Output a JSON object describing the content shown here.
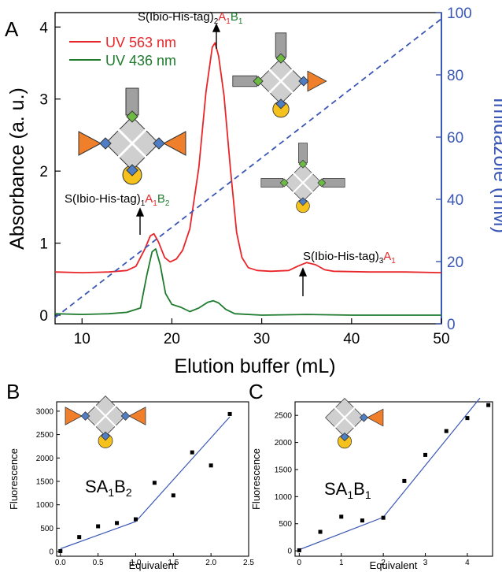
{
  "chart_data": [
    {
      "panel": "A",
      "type": "line",
      "xlabel": "Elution buffer (mL)",
      "ylabel": "Absorbance (a. u.)",
      "y2label": "Imidazole (mM)",
      "xlim": [
        7,
        50
      ],
      "ylim": [
        -0.12,
        4.2
      ],
      "y2lim": [
        0,
        100
      ],
      "xticks": [
        10,
        20,
        30,
        40,
        50
      ],
      "yticks": [
        0,
        1,
        2,
        3,
        4
      ],
      "y2ticks": [
        0,
        20,
        40,
        60,
        80,
        100
      ],
      "series": [
        {
          "name": "UV 563 nm",
          "color": "#e8262a",
          "points": [
            [
              7,
              0.6
            ],
            [
              10,
              0.59
            ],
            [
              13,
              0.6
            ],
            [
              15,
              0.62
            ],
            [
              16,
              0.68
            ],
            [
              17,
              0.92
            ],
            [
              17.6,
              1.1
            ],
            [
              18,
              1.13
            ],
            [
              18.5,
              1.02
            ],
            [
              19.2,
              0.8
            ],
            [
              19.8,
              0.74
            ],
            [
              20.5,
              0.78
            ],
            [
              21.2,
              0.9
            ],
            [
              22,
              1.2
            ],
            [
              23,
              2.05
            ],
            [
              23.8,
              3.1
            ],
            [
              24.5,
              3.72
            ],
            [
              24.8,
              3.78
            ],
            [
              25.2,
              3.6
            ],
            [
              25.8,
              3.05
            ],
            [
              26.5,
              2.05
            ],
            [
              27.2,
              1.15
            ],
            [
              27.8,
              0.8
            ],
            [
              28.5,
              0.66
            ],
            [
              29.5,
              0.62
            ],
            [
              31,
              0.61
            ],
            [
              33,
              0.62
            ],
            [
              34,
              0.68
            ],
            [
              35,
              0.73
            ],
            [
              36,
              0.7
            ],
            [
              37,
              0.63
            ],
            [
              38,
              0.61
            ],
            [
              42,
              0.6
            ],
            [
              46,
              0.6
            ],
            [
              50,
              0.59
            ]
          ]
        },
        {
          "name": "UV 436 nm",
          "color": "#1e7b2e",
          "points": [
            [
              7,
              0.02
            ],
            [
              10,
              0.01
            ],
            [
              13,
              0.02
            ],
            [
              15,
              0.04
            ],
            [
              16.5,
              0.1
            ],
            [
              17.2,
              0.55
            ],
            [
              17.8,
              0.88
            ],
            [
              18.2,
              0.92
            ],
            [
              18.7,
              0.7
            ],
            [
              19.3,
              0.3
            ],
            [
              20,
              0.15
            ],
            [
              21,
              0.11
            ],
            [
              22,
              0.05
            ],
            [
              23,
              0.1
            ],
            [
              24,
              0.18
            ],
            [
              24.6,
              0.2
            ],
            [
              25.2,
              0.17
            ],
            [
              26,
              0.08
            ],
            [
              27,
              0.02
            ],
            [
              30,
              0.0
            ],
            [
              35,
              0.01
            ],
            [
              40,
              0.0
            ],
            [
              45,
              0.0
            ],
            [
              50,
              0.0
            ]
          ]
        },
        {
          "name": "Imidazole",
          "axis": "right",
          "style": "dashed",
          "color": "#3a57b5",
          "points": [
            [
              7,
              2
            ],
            [
              50,
              98
            ]
          ]
        }
      ],
      "annotations": [
        {
          "pre": "S(Ibio-His-tag)",
          "sub1": "2",
          "a": "A",
          "asub": "1",
          "b": "B",
          "bsub": "1"
        },
        {
          "pre": "S(Ibio-His-tag)",
          "sub1": "1",
          "a": "A",
          "asub": "1",
          "b": "B",
          "bsub": "2"
        },
        {
          "pre": "S(Ibio-His-tag)",
          "sub1": "3",
          "a": "A",
          "asub": "1",
          "b": "",
          "bsub": ""
        }
      ]
    },
    {
      "panel": "B",
      "type": "scatter",
      "xlabel": "Equivalent",
      "ylabel": "Fluorescence",
      "xlim": [
        -0.05,
        2.5
      ],
      "ylim": [
        -100,
        3200
      ],
      "xticks": [
        "0.0",
        "0.5",
        "1.0",
        "1.5",
        "2.0",
        "2.5"
      ],
      "yticks": [
        0,
        500,
        1000,
        1500,
        2000,
        2500,
        3000
      ],
      "points": [
        [
          0,
          10
        ],
        [
          0.25,
          310
        ],
        [
          0.5,
          540
        ],
        [
          0.75,
          610
        ],
        [
          1.0,
          690
        ],
        [
          1.25,
          1470
        ],
        [
          1.5,
          1200
        ],
        [
          1.75,
          2120
        ],
        [
          2.0,
          1840
        ],
        [
          2.25,
          2940
        ]
      ],
      "fit": [
        [
          0,
          60
        ],
        [
          1.0,
          640
        ],
        [
          2.25,
          2880
        ]
      ],
      "label": {
        "main": "SA",
        "s1": "1",
        "b": "B",
        "s2": "2"
      }
    },
    {
      "panel": "C",
      "type": "scatter",
      "xlabel": "Equivalent",
      "ylabel": "Fluorescence",
      "xlim": [
        -0.1,
        4.6
      ],
      "ylim": [
        -100,
        2750
      ],
      "xticks": [
        0,
        1,
        2,
        3,
        4
      ],
      "yticks": [
        0,
        500,
        1000,
        1500,
        2000,
        2500
      ],
      "points": [
        [
          0,
          10
        ],
        [
          0.5,
          350
        ],
        [
          1.0,
          630
        ],
        [
          1.5,
          560
        ],
        [
          2.0,
          610
        ],
        [
          2.5,
          1290
        ],
        [
          3.0,
          1770
        ],
        [
          3.5,
          2210
        ],
        [
          4.0,
          2450
        ],
        [
          4.5,
          2690
        ]
      ],
      "fit": [
        [
          0,
          20
        ],
        [
          2.0,
          620
        ],
        [
          4.3,
          2820
        ]
      ],
      "label": {
        "main": "SA",
        "s1": "1",
        "b": "B",
        "s2": "1"
      }
    }
  ],
  "panel_letters": {
    "a": "A",
    "b": "B",
    "c": "C"
  },
  "colors": {
    "red": "#e8262a",
    "green": "#1e7b2e",
    "blue": "#3a57b5",
    "gray": "#a0a0a0",
    "orange": "#ef7f2b",
    "yellow": "#f5c11c",
    "diamondBlue": "#4f7ec4",
    "diamondGreen": "#6dbb45"
  }
}
